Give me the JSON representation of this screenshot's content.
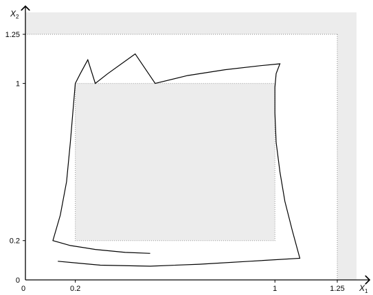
{
  "chart_data": {
    "type": "diagram",
    "xlabel": "X",
    "xlabel_sub": "1",
    "ylabel": "X",
    "ylabel_sub": "2",
    "xlim": [
      0,
      1.32
    ],
    "ylim": [
      0,
      1.32
    ],
    "xticks": [
      {
        "value": 0,
        "label": "0"
      },
      {
        "value": 0.2,
        "label": "0.2"
      },
      {
        "value": 1,
        "label": "1"
      },
      {
        "value": 1.25,
        "label": "1.25"
      }
    ],
    "yticks": [
      {
        "value": 0,
        "label": "0"
      },
      {
        "value": 0.2,
        "label": "0.2"
      },
      {
        "value": 1,
        "label": "1"
      },
      {
        "value": 1.25,
        "label": "1.25"
      }
    ],
    "outer_region": {
      "x": [
        0,
        1.25
      ],
      "y": [
        0,
        1.25
      ],
      "fill": "#ececec"
    },
    "inner_region": {
      "x": [
        0.2,
        1
      ],
      "y": [
        0.2,
        1
      ],
      "fill": "#ececec"
    },
    "boundary_curve": [
      [
        0.2,
        1.0
      ],
      [
        0.22,
        1.05
      ],
      [
        0.25,
        1.12
      ],
      [
        0.28,
        1.0
      ],
      [
        0.33,
        1.05
      ],
      [
        0.44,
        1.15
      ],
      [
        0.52,
        1.0
      ],
      [
        0.65,
        1.04
      ],
      [
        0.8,
        1.07
      ],
      [
        0.94,
        1.09
      ],
      [
        1.02,
        1.1
      ],
      [
        1.005,
        1.05
      ],
      [
        1.0,
        0.98
      ],
      [
        1.0,
        0.85
      ],
      [
        1.005,
        0.7
      ],
      [
        1.02,
        0.55
      ],
      [
        1.04,
        0.4
      ],
      [
        1.07,
        0.25
      ],
      [
        1.1,
        0.11
      ],
      [
        0.9,
        0.095
      ],
      [
        0.7,
        0.08
      ],
      [
        0.5,
        0.07
      ],
      [
        0.3,
        0.075
      ],
      [
        0.13,
        0.095
      ]
    ],
    "left_curve": [
      [
        0.2,
        1.0
      ],
      [
        0.19,
        0.85
      ],
      [
        0.18,
        0.7
      ],
      [
        0.165,
        0.5
      ],
      [
        0.14,
        0.33
      ],
      [
        0.11,
        0.2
      ],
      [
        0.18,
        0.175
      ],
      [
        0.28,
        0.155
      ],
      [
        0.4,
        0.14
      ],
      [
        0.5,
        0.135
      ]
    ]
  }
}
